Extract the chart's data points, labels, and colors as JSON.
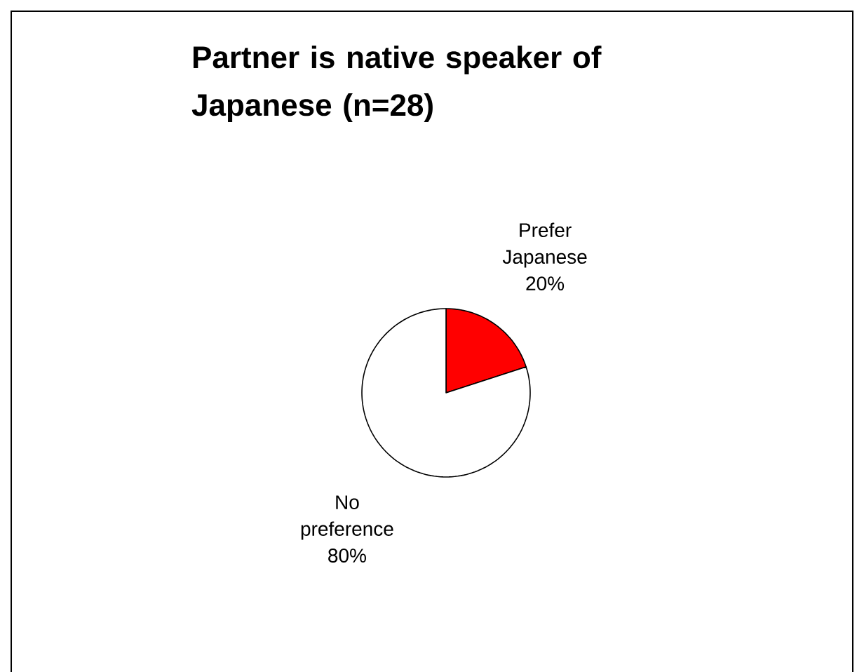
{
  "chart_data": {
    "type": "pie",
    "title": "Partner is native speaker of Japanese (n=28)",
    "categories": [
      "Prefer Japanese",
      "No preference"
    ],
    "values": [
      20,
      80
    ],
    "value_labels": [
      "20%",
      "80%"
    ],
    "colors": [
      "#ff0000",
      "#ffffff"
    ]
  }
}
